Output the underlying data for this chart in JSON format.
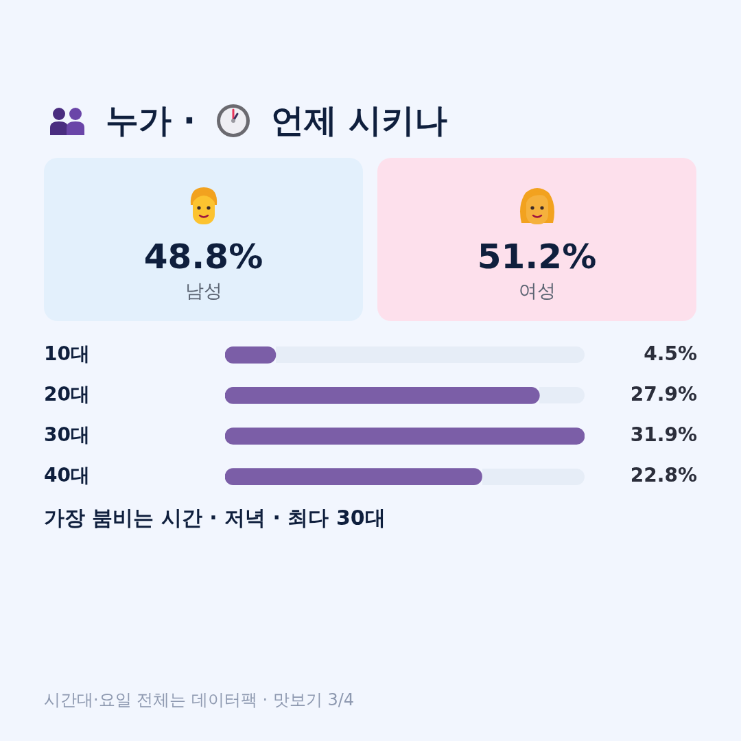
{
  "chart_data": [
    {
      "type": "other",
      "title": "누가 · 언제 시키나",
      "categories": [
        "남성",
        "여성"
      ],
      "values": [
        48.8,
        51.2
      ],
      "value_labels": [
        "48.8%",
        "51.2%"
      ],
      "colors": [
        "#e3f0fc",
        "#fde0ec"
      ]
    },
    {
      "type": "bar",
      "orientation": "horizontal",
      "categories": [
        "10대",
        "20대",
        "30대",
        "40대"
      ],
      "values": [
        4.5,
        27.9,
        31.9,
        22.8
      ],
      "value_labels": [
        "4.5%",
        "27.9%",
        "31.9%",
        "22.8%"
      ],
      "color": "#7b5ea7",
      "tick_labels": "y",
      "annotations": [
        "가장 붐비는 시간 · 저녁 · 최다 30대",
        "시간대·요일 전체는 데이터팩 · 맛보기 3/4"
      ]
    }
  ]
}
